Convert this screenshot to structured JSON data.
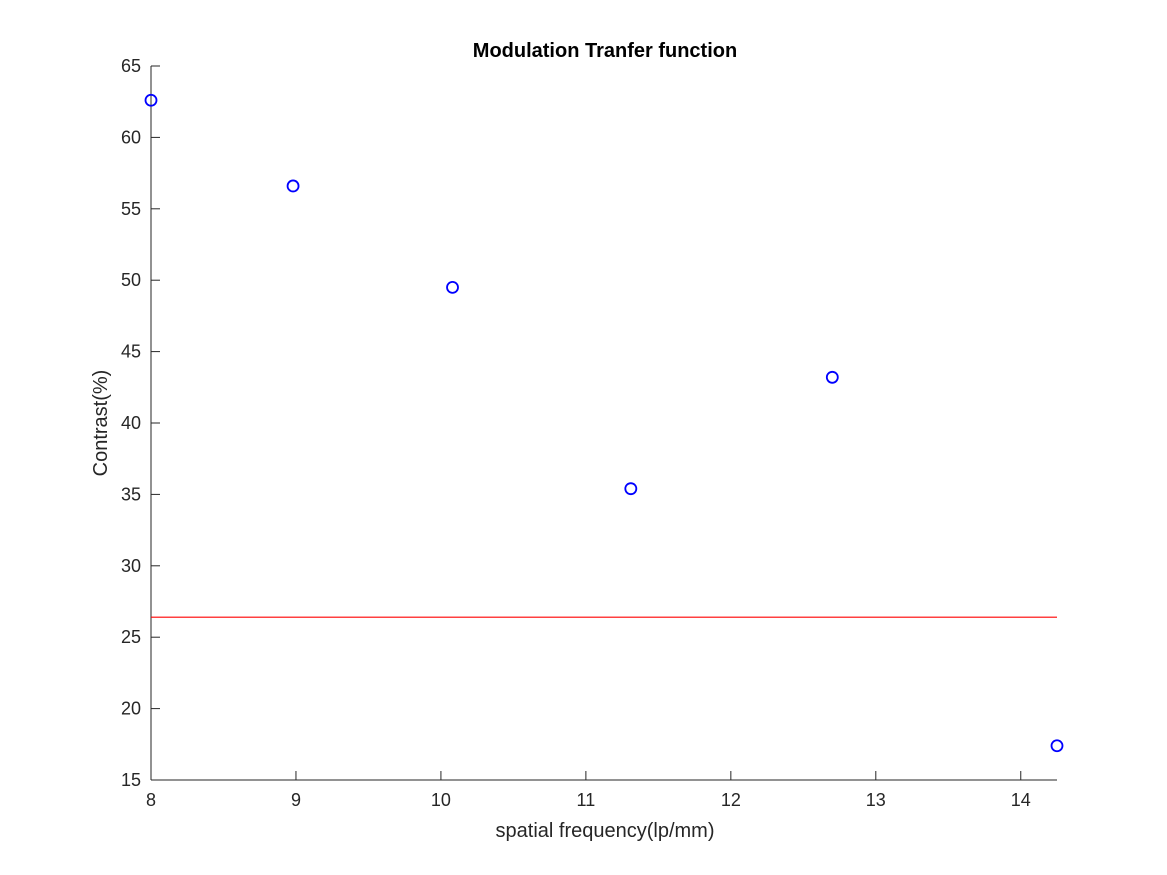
{
  "chart_data": {
    "type": "scatter",
    "title": "Modulation Tranfer function",
    "xlabel": "spatial frequency(lp/mm)",
    "ylabel": "Contrast(%)",
    "xlim": [
      8,
      14.25
    ],
    "ylim": [
      15,
      65
    ],
    "xticks": [
      8,
      9,
      10,
      11,
      12,
      13,
      14
    ],
    "yticks": [
      15,
      20,
      25,
      30,
      35,
      40,
      45,
      50,
      55,
      60,
      65
    ],
    "grid": false,
    "series": [
      {
        "marker": "circle",
        "color": "#0000ff",
        "points": [
          {
            "x": 8.0,
            "y": 62.6
          },
          {
            "x": 8.98,
            "y": 56.6
          },
          {
            "x": 10.08,
            "y": 49.5
          },
          {
            "x": 11.31,
            "y": 35.4
          },
          {
            "x": 12.7,
            "y": 43.2
          },
          {
            "x": 14.25,
            "y": 17.4
          }
        ]
      }
    ],
    "reference_lines": [
      {
        "orientation": "horizontal",
        "y": 26.4,
        "color": "#ff0000"
      }
    ]
  }
}
